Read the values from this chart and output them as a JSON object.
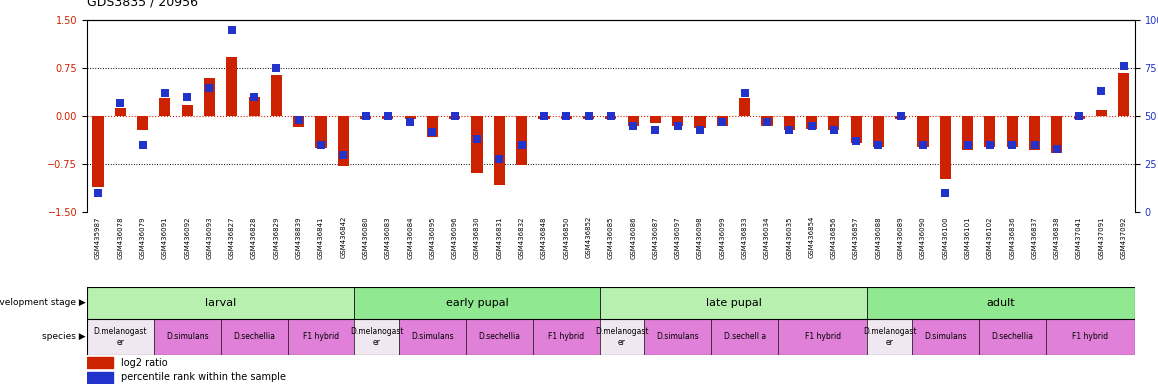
{
  "title": "GDS3835 / 20956",
  "samples": [
    "GSM435987",
    "GSM436078",
    "GSM436079",
    "GSM436091",
    "GSM436092",
    "GSM436093",
    "GSM436827",
    "GSM436828",
    "GSM436829",
    "GSM438839",
    "GSM436841",
    "GSM436842",
    "GSM436080",
    "GSM436083",
    "GSM436084",
    "GSM436095",
    "GSM436096",
    "GSM436830",
    "GSM436831",
    "GSM436832",
    "GSM436848",
    "GSM436850",
    "GSM436852",
    "GSM436085",
    "GSM436086",
    "GSM436087",
    "GSM436097",
    "GSM436098",
    "GSM436099",
    "GSM436833",
    "GSM436034",
    "GSM436035",
    "GSM436854",
    "GSM436856",
    "GSM436857",
    "GSM436088",
    "GSM436089",
    "GSM436090",
    "GSM436100",
    "GSM436101",
    "GSM436102",
    "GSM436836",
    "GSM436837",
    "GSM436838",
    "GSM437041",
    "GSM437091",
    "GSM437092"
  ],
  "log2_ratio": [
    -1.1,
    0.13,
    -0.22,
    0.28,
    0.18,
    0.6,
    0.92,
    0.3,
    0.65,
    -0.16,
    -0.5,
    -0.78,
    -0.04,
    -0.04,
    -0.04,
    -0.32,
    -0.04,
    -0.88,
    -1.08,
    -0.76,
    -0.04,
    -0.04,
    -0.04,
    -0.04,
    -0.15,
    -0.1,
    -0.15,
    -0.18,
    -0.15,
    0.28,
    -0.15,
    -0.22,
    -0.2,
    -0.22,
    -0.42,
    -0.48,
    -0.04,
    -0.48,
    -0.98,
    -0.52,
    -0.48,
    -0.48,
    -0.52,
    -0.58,
    -0.04,
    0.1,
    0.68
  ],
  "percentile": [
    10,
    57,
    35,
    62,
    60,
    65,
    95,
    60,
    75,
    48,
    35,
    30,
    50,
    50,
    47,
    42,
    50,
    38,
    28,
    35,
    50,
    50,
    50,
    50,
    45,
    43,
    45,
    43,
    47,
    62,
    47,
    43,
    45,
    43,
    37,
    35,
    50,
    35,
    10,
    35,
    35,
    35,
    35,
    33,
    50,
    63,
    76
  ],
  "dev_stage_groups": [
    {
      "label": "larval",
      "start": 0,
      "end": 11,
      "color": "#b8f0b0"
    },
    {
      "label": "early pupal",
      "start": 12,
      "end": 22,
      "color": "#90e890"
    },
    {
      "label": "late pupal",
      "start": 23,
      "end": 34,
      "color": "#b8f0b0"
    },
    {
      "label": "adult",
      "start": 35,
      "end": 46,
      "color": "#90e890"
    }
  ],
  "species_groups": [
    {
      "label": "D.melanogast\ner",
      "start": 0,
      "end": 2,
      "color": "#f0e8f0"
    },
    {
      "label": "D.simulans",
      "start": 3,
      "end": 5,
      "color": "#e080d8"
    },
    {
      "label": "D.sechellia",
      "start": 6,
      "end": 8,
      "color": "#e080d8"
    },
    {
      "label": "F1 hybrid",
      "start": 9,
      "end": 11,
      "color": "#e080d8"
    },
    {
      "label": "D.melanogast\ner",
      "start": 12,
      "end": 13,
      "color": "#f0e8f0"
    },
    {
      "label": "D.simulans",
      "start": 14,
      "end": 16,
      "color": "#e080d8"
    },
    {
      "label": "D.sechellia",
      "start": 17,
      "end": 19,
      "color": "#e080d8"
    },
    {
      "label": "F1 hybrid",
      "start": 20,
      "end": 22,
      "color": "#e080d8"
    },
    {
      "label": "D.melanogast\ner",
      "start": 23,
      "end": 24,
      "color": "#f0e8f0"
    },
    {
      "label": "D.simulans",
      "start": 25,
      "end": 27,
      "color": "#e080d8"
    },
    {
      "label": "D.sechell a",
      "start": 28,
      "end": 30,
      "color": "#e080d8"
    },
    {
      "label": "F1 hybrid",
      "start": 31,
      "end": 34,
      "color": "#e080d8"
    },
    {
      "label": "D.melanogast\ner",
      "start": 35,
      "end": 36,
      "color": "#f0e8f0"
    },
    {
      "label": "D.simulans",
      "start": 37,
      "end": 39,
      "color": "#e080d8"
    },
    {
      "label": "D.sechellia",
      "start": 40,
      "end": 42,
      "color": "#e080d8"
    },
    {
      "label": "F1 hybrid",
      "start": 43,
      "end": 46,
      "color": "#e080d8"
    }
  ],
  "ylim": [
    -1.5,
    1.5
  ],
  "bar_color": "#cc2200",
  "dot_color": "#2233cc",
  "right_ticks": [
    0,
    25,
    50,
    75,
    100
  ],
  "left_ticks": [
    -1.5,
    -0.75,
    0,
    0.75,
    1.5
  ],
  "dotted_lines_black": [
    0.75,
    -0.75
  ],
  "left_tick_color": "#cc2200",
  "right_tick_color": "#2233cc",
  "title_fontsize": 9,
  "bar_width": 0.5,
  "dot_marker_size": 28
}
